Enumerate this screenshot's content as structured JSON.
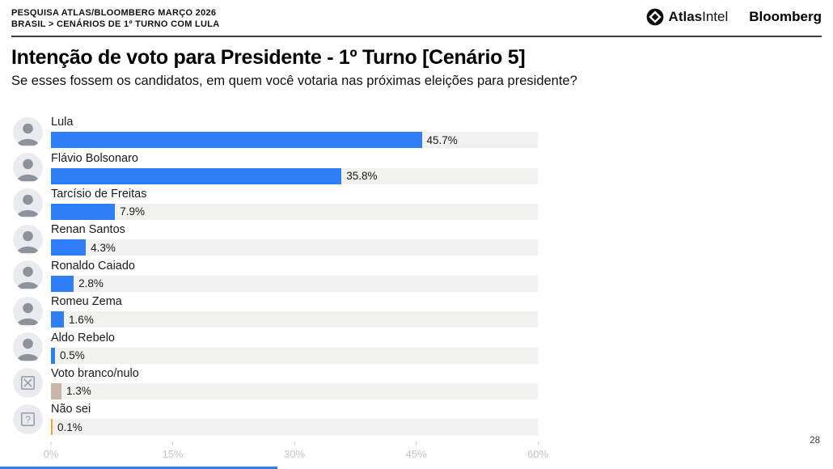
{
  "header": {
    "kicker_line1": "PESQUISA ATLAS/BLOOMBERG MARÇO 2026",
    "kicker_line2": "BRASIL > CENÁRIOS DE 1º TURNO COM LULA",
    "logo_atlas_bold": "Atlas",
    "logo_atlas_light": "Intel",
    "logo_bloomberg": "Bloomberg"
  },
  "title": "Intenção de voto para Presidente - 1º Turno [Cenário 5]",
  "subtitle": "Se esses fossem os candidatos, em quem você votaria nas próximas eleições para presidente?",
  "page_number": "28",
  "colors": {
    "bar_blue": "#2e7ef7",
    "bar_taupe": "#c7b5aa",
    "bar_orange": "#e9a63c",
    "track": "#f1f1ef",
    "accent_bottom_bar": "#2e7ef7"
  },
  "chart_data": {
    "type": "bar",
    "orientation": "horizontal",
    "title": "Intenção de voto para Presidente - 1º Turno [Cenário 5]",
    "categories": [
      "Lula",
      "Flávio Bolsonaro",
      "Tarcísio de Freitas",
      "Renan Santos",
      "Ronaldo Caiado",
      "Romeu Zema",
      "Aldo Rebelo",
      "Voto branco/nulo",
      "Não sei"
    ],
    "values": [
      45.7,
      35.8,
      7.9,
      4.3,
      2.8,
      1.6,
      0.5,
      1.3,
      0.1
    ],
    "value_labels": [
      "45.7%",
      "35.8%",
      "7.9%",
      "4.3%",
      "2.8%",
      "1.6%",
      "0.5%",
      "1.3%",
      "0.1%"
    ],
    "bar_colors": [
      "#2e7ef7",
      "#2e7ef7",
      "#2e7ef7",
      "#2e7ef7",
      "#2e7ef7",
      "#2e7ef7",
      "#2e7ef7",
      "#c7b5aa",
      "#e9a63c"
    ],
    "icons": [
      "candidate-photo",
      "candidate-photo",
      "candidate-photo",
      "candidate-photo",
      "candidate-photo",
      "candidate-photo",
      "candidate-photo",
      "ballot-x-icon",
      "question-mark-icon"
    ],
    "xlim": [
      0,
      60
    ],
    "x_ticks": [
      "0%",
      "15%",
      "30%",
      "45%",
      "60%"
    ],
    "x_tick_values": [
      0,
      15,
      30,
      45,
      60
    ],
    "grid": "off",
    "legend": "none"
  }
}
